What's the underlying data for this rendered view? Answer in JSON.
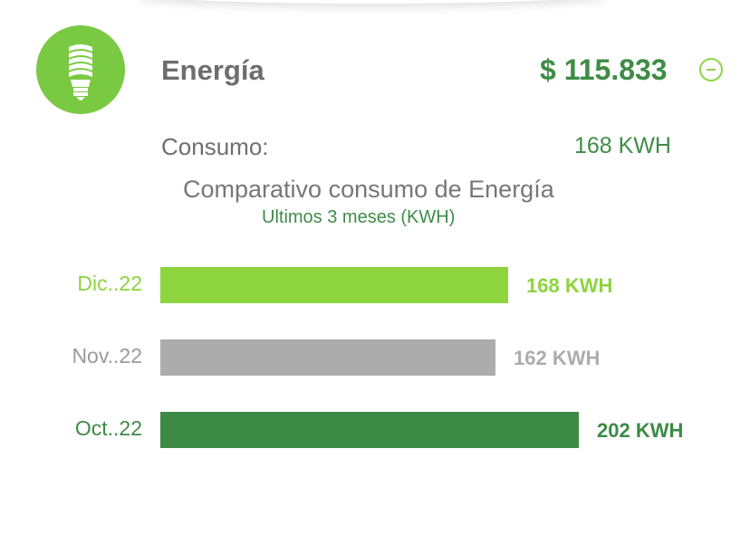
{
  "header": {
    "icon": "lightbulb-icon",
    "title": "Energía",
    "amount": "$ 115.833",
    "collapse_icon": "minus-circle-icon"
  },
  "summary": {
    "consumo_label": "Consumo:",
    "consumo_value": "168 KWH"
  },
  "comparison": {
    "title": "Comparativo consumo de Energía",
    "subtitle": "Ultimos 3 meses (KWH)"
  },
  "colors": {
    "accent_light": "#8dd43e",
    "accent_dark": "#3d8a46",
    "neutral": "#acacac"
  },
  "chart_data": {
    "type": "bar",
    "orientation": "horizontal",
    "title": "Comparativo consumo de Energía",
    "subtitle": "Ultimos 3 meses (KWH)",
    "xlim": [
      0,
      224
    ],
    "bars": [
      {
        "label": "Dic..22",
        "value": 168,
        "value_label": "168 KWH",
        "color": "#8dd43e"
      },
      {
        "label": "Nov..22",
        "value": 162,
        "value_label": "162 KWH",
        "color": "#acacac"
      },
      {
        "label": "Oct..22",
        "value": 202,
        "value_label": "202 KWH",
        "color": "#3d8a46"
      }
    ]
  }
}
